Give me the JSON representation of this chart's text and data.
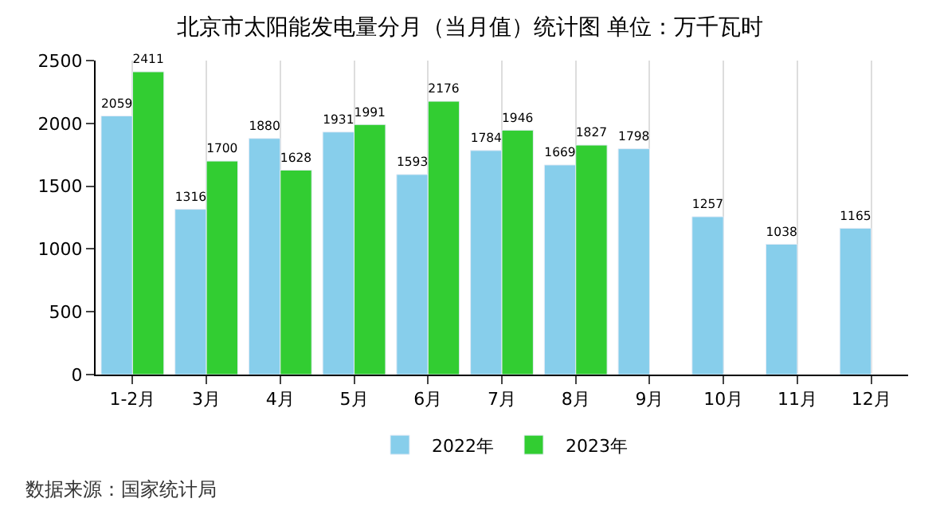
{
  "chart_data": {
    "type": "bar",
    "title": "北京市太阳能发电量分月（当月值）统计图 单位：万千瓦时",
    "categories": [
      "1-2月",
      "3月",
      "4月",
      "5月",
      "6月",
      "7月",
      "8月",
      "9月",
      "10月",
      "11月",
      "12月"
    ],
    "series": [
      {
        "name": "2022年",
        "color": "#87ceeb",
        "values": [
          2059,
          1316,
          1880,
          1931,
          1593,
          1784,
          1669,
          1798,
          1257,
          1038,
          1165
        ]
      },
      {
        "name": "2023年",
        "color": "#32cd32",
        "values": [
          2411,
          1700,
          1628,
          1991,
          2176,
          1946,
          1827,
          null,
          null,
          null,
          null
        ]
      }
    ],
    "ylim": [
      0,
      2500
    ],
    "yticks": [
      0,
      500,
      1000,
      1500,
      2000,
      2500
    ],
    "grid": "x",
    "legend": "bottom",
    "data_labels": true,
    "annotations": [
      "数据来源：国家统计局"
    ]
  }
}
